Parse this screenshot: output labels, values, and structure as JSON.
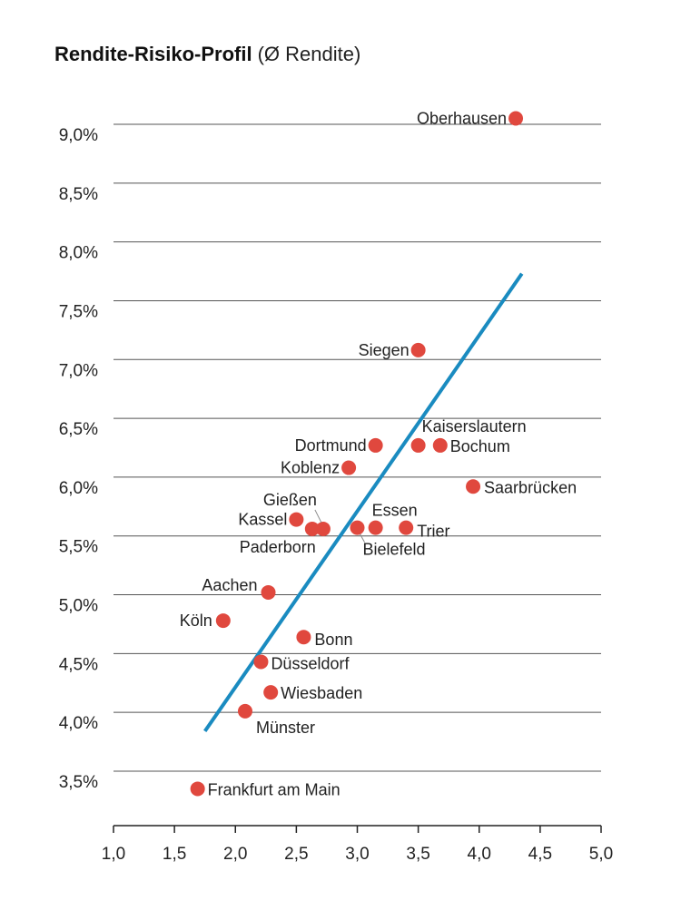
{
  "chart_data": {
    "type": "scatter",
    "title": "Rendite-Risiko-Profil",
    "subtitle": "(Ø Rendite)",
    "xlim": [
      1.0,
      5.0
    ],
    "ylim": [
      3.5,
      9.0
    ],
    "x_ticks": [
      "1,0",
      "1,5",
      "2,0",
      "2,5",
      "3,0",
      "3,5",
      "4,0",
      "4,5",
      "5,0"
    ],
    "y_ticks": [
      "9,0%",
      "8,5%",
      "8,0%",
      "7,5%",
      "7,0%",
      "6,5%",
      "6,0%",
      "5,5%",
      "5,0%",
      "4,5%",
      "4,0%",
      "3,5%"
    ],
    "grid": "horizontal",
    "colors": {
      "points": "#e0483e",
      "trend": "#1a8bc0",
      "grid": "#555555"
    },
    "points": [
      {
        "label": "Oberhausen",
        "x": 4.3,
        "y": 9.05
      },
      {
        "label": "Siegen",
        "x": 3.5,
        "y": 7.08
      },
      {
        "label": "Kaiserslautern",
        "x": 3.5,
        "y": 6.27
      },
      {
        "label": "Bochum",
        "x": 3.68,
        "y": 6.27
      },
      {
        "label": "Dortmund",
        "x": 3.15,
        "y": 6.27
      },
      {
        "label": "Koblenz",
        "x": 2.93,
        "y": 6.08
      },
      {
        "label": "Saarbrücken",
        "x": 3.95,
        "y": 5.92
      },
      {
        "label": "Kassel",
        "x": 2.5,
        "y": 5.64
      },
      {
        "label": "Gießen",
        "x": 2.72,
        "y": 5.56
      },
      {
        "label": "Paderborn",
        "x": 2.63,
        "y": 5.56
      },
      {
        "label": "Bielefeld",
        "x": 3.0,
        "y": 5.57
      },
      {
        "label": "Essen",
        "x": 3.15,
        "y": 5.57
      },
      {
        "label": "Trier",
        "x": 3.4,
        "y": 5.57
      },
      {
        "label": "Aachen",
        "x": 2.27,
        "y": 5.02
      },
      {
        "label": "Köln",
        "x": 1.9,
        "y": 4.78
      },
      {
        "label": "Bonn",
        "x": 2.56,
        "y": 4.64
      },
      {
        "label": "Düsseldorf",
        "x": 2.21,
        "y": 4.43
      },
      {
        "label": "Wiesbaden",
        "x": 2.29,
        "y": 4.17
      },
      {
        "label": "Münster",
        "x": 2.08,
        "y": 4.01
      },
      {
        "label": "Frankfurt am Main",
        "x": 1.69,
        "y": 3.35
      }
    ],
    "trendline": {
      "x": [
        1.75,
        4.35
      ],
      "y": [
        3.84,
        7.73
      ]
    }
  }
}
